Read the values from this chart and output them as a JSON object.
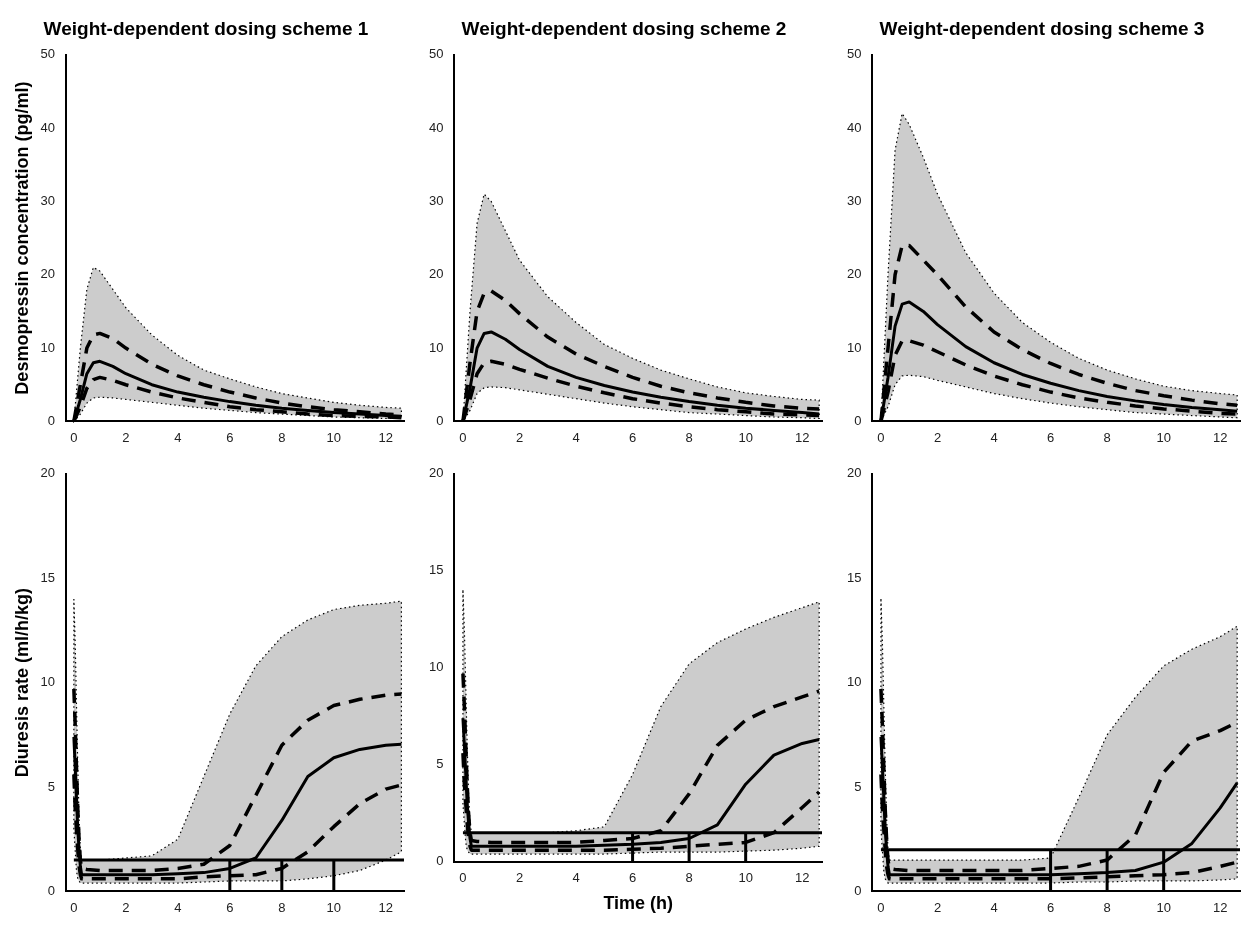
{
  "chart_data": [
    {
      "type": "line",
      "title": "Weight-dependent dosing scheme 1",
      "ylabel": "Desmopressin concentration (pg/ml)",
      "x": [
        0,
        0.25,
        0.5,
        0.75,
        1,
        1.5,
        2,
        3,
        4,
        5,
        6,
        7,
        8,
        9,
        10,
        11,
        12,
        12.6
      ],
      "xlim": [
        -0.3,
        12.7
      ],
      "xticks": [
        0,
        2,
        4,
        6,
        8,
        10,
        12
      ],
      "ylim": [
        0,
        50
      ],
      "yticks": [
        0,
        10,
        20,
        30,
        40,
        50
      ],
      "legend": false,
      "grid": false,
      "marker": "none",
      "series": [
        {
          "color": "#000000",
          "line_style": "solid",
          "values": [
            0,
            3,
            6.5,
            8,
            8.2,
            7.5,
            6.5,
            5,
            4,
            3.3,
            2.7,
            2.2,
            1.8,
            1.5,
            1.2,
            1,
            0.8,
            0.7
          ],
          "lower": [
            0,
            1,
            2.5,
            3.2,
            3.3,
            3.2,
            3,
            2.6,
            2.2,
            1.8,
            1.5,
            1.2,
            1,
            0.8,
            0.6,
            0.5,
            0.4,
            0.4
          ],
          "upper": [
            0,
            10,
            18,
            21,
            20.5,
            18,
            15.5,
            11.8,
            9,
            7,
            5.8,
            4.7,
            3.8,
            3.2,
            2.6,
            2.2,
            1.9,
            1.8
          ]
        },
        {
          "color": "#000000",
          "line_style": "dashed",
          "values": [
            0,
            5,
            10,
            11.8,
            12,
            11.3,
            10,
            7.8,
            6.2,
            5,
            4,
            3.2,
            2.5,
            2,
            1.6,
            1.3,
            1,
            0.9
          ]
        },
        {
          "color": "#000000",
          "line_style": "dashed",
          "values": [
            0,
            2,
            4.5,
            5.7,
            6,
            5.6,
            5,
            4,
            3.2,
            2.6,
            2,
            1.6,
            1.3,
            1,
            0.8,
            0.7,
            0.6,
            0.5
          ]
        }
      ]
    },
    {
      "type": "line",
      "title": "Weight-dependent dosing scheme 2",
      "x": [
        0,
        0.25,
        0.5,
        0.75,
        1,
        1.5,
        2,
        3,
        4,
        5,
        6,
        7,
        8,
        9,
        10,
        11,
        12,
        12.6
      ],
      "xlim": [
        -0.3,
        12.7
      ],
      "xticks": [
        0,
        2,
        4,
        6,
        8,
        10,
        12
      ],
      "ylim": [
        0,
        50
      ],
      "yticks": [
        0,
        10,
        20,
        30,
        40,
        50
      ],
      "legend": false,
      "grid": false,
      "marker": "none",
      "series": [
        {
          "color": "#000000",
          "line_style": "solid",
          "values": [
            0,
            4.5,
            10,
            12,
            12.2,
            11.2,
            9.8,
            7.5,
            6,
            4.9,
            4,
            3.3,
            2.7,
            2.2,
            1.8,
            1.5,
            1.2,
            1
          ],
          "lower": [
            0,
            1.5,
            3.8,
            4.6,
            4.7,
            4.6,
            4.3,
            3.7,
            3.1,
            2.5,
            2,
            1.6,
            1.2,
            1,
            0.8,
            0.6,
            0.5,
            0.4
          ],
          "upper": [
            0,
            15,
            27,
            31,
            30,
            26,
            22,
            17,
            13.5,
            10.5,
            8.6,
            7,
            5.8,
            4.7,
            3.9,
            3.4,
            3,
            2.9
          ]
        },
        {
          "color": "#000000",
          "line_style": "dashed",
          "values": [
            0,
            8,
            15,
            17.5,
            17.8,
            16.5,
            14.7,
            11.5,
            9.2,
            7.5,
            6,
            4.8,
            3.9,
            3.2,
            2.6,
            2.1,
            1.8,
            1.7
          ]
        },
        {
          "color": "#000000",
          "line_style": "dashed",
          "values": [
            0,
            3,
            6.5,
            8,
            8.2,
            7.8,
            7.1,
            5.9,
            4.8,
            3.9,
            3.1,
            2.5,
            2,
            1.6,
            1.3,
            1,
            0.9,
            0.8
          ]
        }
      ]
    },
    {
      "type": "line",
      "title": "Weight-dependent dosing scheme 3",
      "x": [
        0,
        0.25,
        0.5,
        0.75,
        1,
        1.5,
        2,
        3,
        4,
        5,
        6,
        7,
        8,
        9,
        10,
        11,
        12,
        12.6
      ],
      "xlim": [
        -0.3,
        12.7
      ],
      "xticks": [
        0,
        2,
        4,
        6,
        8,
        10,
        12
      ],
      "ylim": [
        0,
        50
      ],
      "yticks": [
        0,
        10,
        20,
        30,
        40,
        50
      ],
      "legend": false,
      "grid": false,
      "marker": "none",
      "series": [
        {
          "color": "#000000",
          "line_style": "solid",
          "values": [
            0,
            6,
            13,
            16,
            16.3,
            15,
            13.2,
            10.2,
            8,
            6.4,
            5.2,
            4.2,
            3.4,
            2.8,
            2.3,
            1.9,
            1.6,
            1.4
          ],
          "lower": [
            0,
            2,
            5,
            6.2,
            6.3,
            6.1,
            5.6,
            4.7,
            3.8,
            3.1,
            2.5,
            2,
            1.6,
            1.2,
            1,
            0.8,
            0.6,
            0.5
          ],
          "upper": [
            0,
            20,
            37,
            42,
            40.5,
            36,
            31,
            23,
            17.5,
            13.5,
            10.8,
            8.6,
            7,
            5.8,
            4.8,
            4.2,
            3.8,
            3.6
          ]
        },
        {
          "color": "#000000",
          "line_style": "dashed",
          "values": [
            0,
            10,
            20,
            24,
            24,
            22,
            20,
            15.6,
            12.2,
            9.8,
            7.9,
            6.4,
            5.2,
            4.2,
            3.5,
            2.9,
            2.4,
            2.2
          ]
        },
        {
          "color": "#000000",
          "line_style": "dashed",
          "values": [
            0,
            4,
            9,
            11,
            11,
            10.4,
            9.5,
            7.7,
            6.2,
            5,
            4,
            3.2,
            2.6,
            2.1,
            1.7,
            1.4,
            1.1,
            1
          ]
        }
      ]
    },
    {
      "type": "line",
      "ylabel": "Diuresis rate (ml/h/kg)",
      "x": [
        0,
        0.05,
        0.1,
        0.15,
        0.2,
        0.25,
        0.3,
        0.5,
        1,
        2,
        3,
        4,
        5,
        6,
        7,
        8,
        9,
        10,
        11,
        12,
        12.6
      ],
      "xlim": [
        -0.3,
        12.7
      ],
      "xticks": [
        0,
        2,
        4,
        6,
        8,
        10,
        12
      ],
      "ylim": [
        0,
        20
      ],
      "yticks": [
        0,
        5,
        10,
        15,
        20
      ],
      "legend": false,
      "grid": false,
      "marker": "none",
      "ref_lines": [
        {
          "axis": "y",
          "value": 1.5
        }
      ],
      "series": [
        {
          "type": "line",
          "color": "#000000",
          "line_style": "solid",
          "x": [
            6,
            6
          ],
          "values": [
            0,
            1.5
          ]
        },
        {
          "type": "line",
          "color": "#000000",
          "line_style": "solid",
          "x": [
            8,
            8
          ],
          "values": [
            0,
            1.5
          ]
        },
        {
          "type": "line",
          "color": "#000000",
          "line_style": "solid",
          "x": [
            10,
            10
          ],
          "values": [
            0,
            1.5
          ]
        },
        {
          "color": "#000000",
          "line_style": "solid",
          "values": [
            7.4,
            6,
            4.5,
            3,
            2,
            1.2,
            0.8,
            0.8,
            0.8,
            0.8,
            0.8,
            0.85,
            0.9,
            1.1,
            1.6,
            3.4,
            5.5,
            6.4,
            6.8,
            7,
            7.05
          ],
          "lower": [
            3,
            2,
            1,
            0.6,
            0.5,
            0.4,
            0.4,
            0.4,
            0.4,
            0.4,
            0.4,
            0.4,
            0.45,
            0.5,
            0.5,
            0.5,
            0.6,
            0.75,
            1,
            1.5,
            1.9
          ],
          "upper": [
            14,
            12,
            9,
            6,
            3.5,
            2,
            1.5,
            1.5,
            1.5,
            1.6,
            1.7,
            2.5,
            5.5,
            8.5,
            10.8,
            12.2,
            13,
            13.5,
            13.7,
            13.8,
            13.9
          ]
        },
        {
          "color": "#000000",
          "line_style": "dashed",
          "values": [
            9.7,
            8,
            6,
            4,
            2.5,
            1.5,
            1.1,
            1.05,
            1,
            1,
            1,
            1.1,
            1.3,
            2.2,
            4.6,
            7,
            8.2,
            8.9,
            9.2,
            9.4,
            9.45
          ]
        },
        {
          "color": "#000000",
          "line_style": "dashed",
          "values": [
            5.6,
            4,
            3,
            2,
            1.2,
            0.8,
            0.6,
            0.6,
            0.6,
            0.6,
            0.6,
            0.6,
            0.7,
            0.75,
            0.8,
            1.1,
            1.9,
            3.1,
            4.2,
            4.9,
            5.1
          ]
        }
      ]
    },
    {
      "type": "line",
      "xlabel": "Time (h)",
      "x": [
        0,
        0.05,
        0.1,
        0.15,
        0.2,
        0.25,
        0.3,
        0.5,
        1,
        2,
        3,
        4,
        5,
        6,
        7,
        8,
        9,
        10,
        11,
        12,
        12.6
      ],
      "xlim": [
        -0.3,
        12.7
      ],
      "xticks": [
        0,
        2,
        4,
        6,
        8,
        10,
        12
      ],
      "ylim": [
        0,
        20
      ],
      "yticks": [
        0,
        5,
        10,
        15,
        20
      ],
      "legend": false,
      "grid": false,
      "marker": "none",
      "ref_lines": [
        {
          "axis": "y",
          "value": 1.5
        }
      ],
      "series": [
        {
          "type": "line",
          "color": "#000000",
          "line_style": "solid",
          "x": [
            6,
            6
          ],
          "values": [
            0,
            1.5
          ]
        },
        {
          "type": "line",
          "color": "#000000",
          "line_style": "solid",
          "x": [
            8,
            8
          ],
          "values": [
            0,
            1.5
          ]
        },
        {
          "type": "line",
          "color": "#000000",
          "line_style": "solid",
          "x": [
            10,
            10
          ],
          "values": [
            0,
            1.5
          ]
        },
        {
          "color": "#000000",
          "line_style": "solid",
          "values": [
            7.4,
            6,
            4.5,
            3,
            2,
            1.2,
            0.8,
            0.8,
            0.8,
            0.8,
            0.8,
            0.8,
            0.85,
            0.9,
            1,
            1.2,
            1.9,
            4,
            5.5,
            6.1,
            6.3
          ],
          "lower": [
            3,
            2,
            1,
            0.6,
            0.5,
            0.4,
            0.4,
            0.4,
            0.4,
            0.4,
            0.4,
            0.4,
            0.4,
            0.45,
            0.5,
            0.5,
            0.5,
            0.55,
            0.6,
            0.7,
            0.8
          ],
          "upper": [
            14,
            12,
            9,
            6,
            3.5,
            2,
            1.5,
            1.5,
            1.5,
            1.5,
            1.5,
            1.6,
            1.8,
            4.5,
            8,
            10.2,
            11.3,
            12,
            12.6,
            13.1,
            13.4
          ]
        },
        {
          "color": "#000000",
          "line_style": "dashed",
          "values": [
            9.7,
            8,
            6,
            4,
            2.5,
            1.5,
            1.1,
            1.05,
            1,
            1,
            1,
            1,
            1.1,
            1.2,
            1.6,
            3.5,
            6,
            7.3,
            8,
            8.5,
            8.8
          ]
        },
        {
          "color": "#000000",
          "line_style": "dashed",
          "values": [
            5.6,
            4,
            3,
            2,
            1.2,
            0.8,
            0.6,
            0.6,
            0.6,
            0.6,
            0.6,
            0.6,
            0.6,
            0.65,
            0.7,
            0.8,
            0.9,
            1,
            1.5,
            2.8,
            3.6
          ]
        }
      ]
    },
    {
      "type": "line",
      "x": [
        0,
        0.05,
        0.1,
        0.15,
        0.2,
        0.25,
        0.3,
        0.5,
        1,
        2,
        3,
        4,
        5,
        6,
        7,
        8,
        9,
        10,
        11,
        12,
        12.6
      ],
      "xlim": [
        -0.3,
        12.7
      ],
      "xticks": [
        0,
        2,
        4,
        6,
        8,
        10,
        12
      ],
      "ylim": [
        0,
        20
      ],
      "yticks": [
        0,
        5,
        10,
        15,
        20
      ],
      "legend": false,
      "grid": false,
      "marker": "none",
      "ref_lines": [
        {
          "axis": "y",
          "value": 2
        }
      ],
      "series": [
        {
          "type": "line",
          "color": "#000000",
          "line_style": "solid",
          "x": [
            6,
            6
          ],
          "values": [
            0,
            2
          ]
        },
        {
          "type": "line",
          "color": "#000000",
          "line_style": "solid",
          "x": [
            8,
            8
          ],
          "values": [
            0,
            2
          ]
        },
        {
          "type": "line",
          "color": "#000000",
          "line_style": "solid",
          "x": [
            10,
            10
          ],
          "values": [
            0,
            2
          ]
        },
        {
          "color": "#000000",
          "line_style": "solid",
          "values": [
            7.4,
            6,
            4.5,
            3,
            2,
            1.2,
            0.8,
            0.8,
            0.8,
            0.8,
            0.8,
            0.8,
            0.8,
            0.8,
            0.85,
            0.9,
            1,
            1.4,
            2.3,
            4,
            5.2
          ],
          "lower": [
            3,
            2,
            1,
            0.6,
            0.5,
            0.4,
            0.4,
            0.4,
            0.4,
            0.4,
            0.4,
            0.4,
            0.4,
            0.4,
            0.45,
            0.45,
            0.5,
            0.5,
            0.5,
            0.55,
            0.6
          ],
          "upper": [
            14,
            12,
            9,
            6,
            3.5,
            2,
            1.5,
            1.5,
            1.5,
            1.5,
            1.5,
            1.5,
            1.5,
            1.6,
            4.5,
            7.5,
            9.3,
            10.8,
            11.6,
            12.2,
            12.7
          ]
        },
        {
          "color": "#000000",
          "line_style": "dashed",
          "values": [
            9.7,
            8,
            6,
            4,
            2.5,
            1.5,
            1.1,
            1.05,
            1,
            1,
            1,
            1,
            1,
            1.1,
            1.2,
            1.5,
            2.7,
            5.7,
            7.2,
            7.7,
            8.1
          ]
        },
        {
          "color": "#000000",
          "line_style": "dashed",
          "values": [
            5.6,
            4,
            3,
            2,
            1.2,
            0.8,
            0.6,
            0.6,
            0.6,
            0.6,
            0.6,
            0.6,
            0.6,
            0.6,
            0.65,
            0.7,
            0.75,
            0.8,
            0.9,
            1.2,
            1.4
          ]
        }
      ]
    }
  ]
}
